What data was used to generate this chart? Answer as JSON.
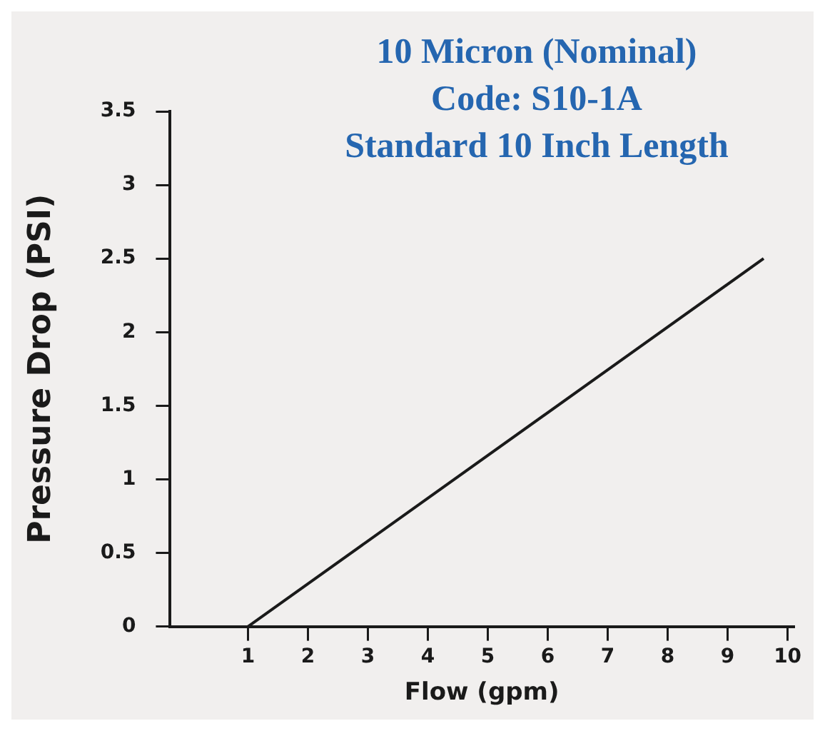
{
  "chart_data": {
    "type": "line",
    "title": "10 Micron (Nominal)\nCode: S10-1A\nStandard 10 Inch Length",
    "xlabel": "Flow (gpm)",
    "ylabel": "Pressure Drop (PSI)",
    "series": [
      {
        "color": "#1a1a1a",
        "x": [
          1,
          9.6
        ],
        "values": [
          0,
          2.5
        ]
      }
    ],
    "xlim": [
      -0.3,
      10.1
    ],
    "xticks": [
      1,
      2,
      3,
      4,
      5,
      6,
      7,
      8,
      9,
      10
    ],
    "ylim": [
      0,
      3.5
    ],
    "yticks": [
      0,
      0.5,
      1,
      1.5,
      2,
      2.5,
      3,
      3.5
    ],
    "grid": false,
    "legend": false,
    "marker": "none",
    "line_style": "solid"
  }
}
